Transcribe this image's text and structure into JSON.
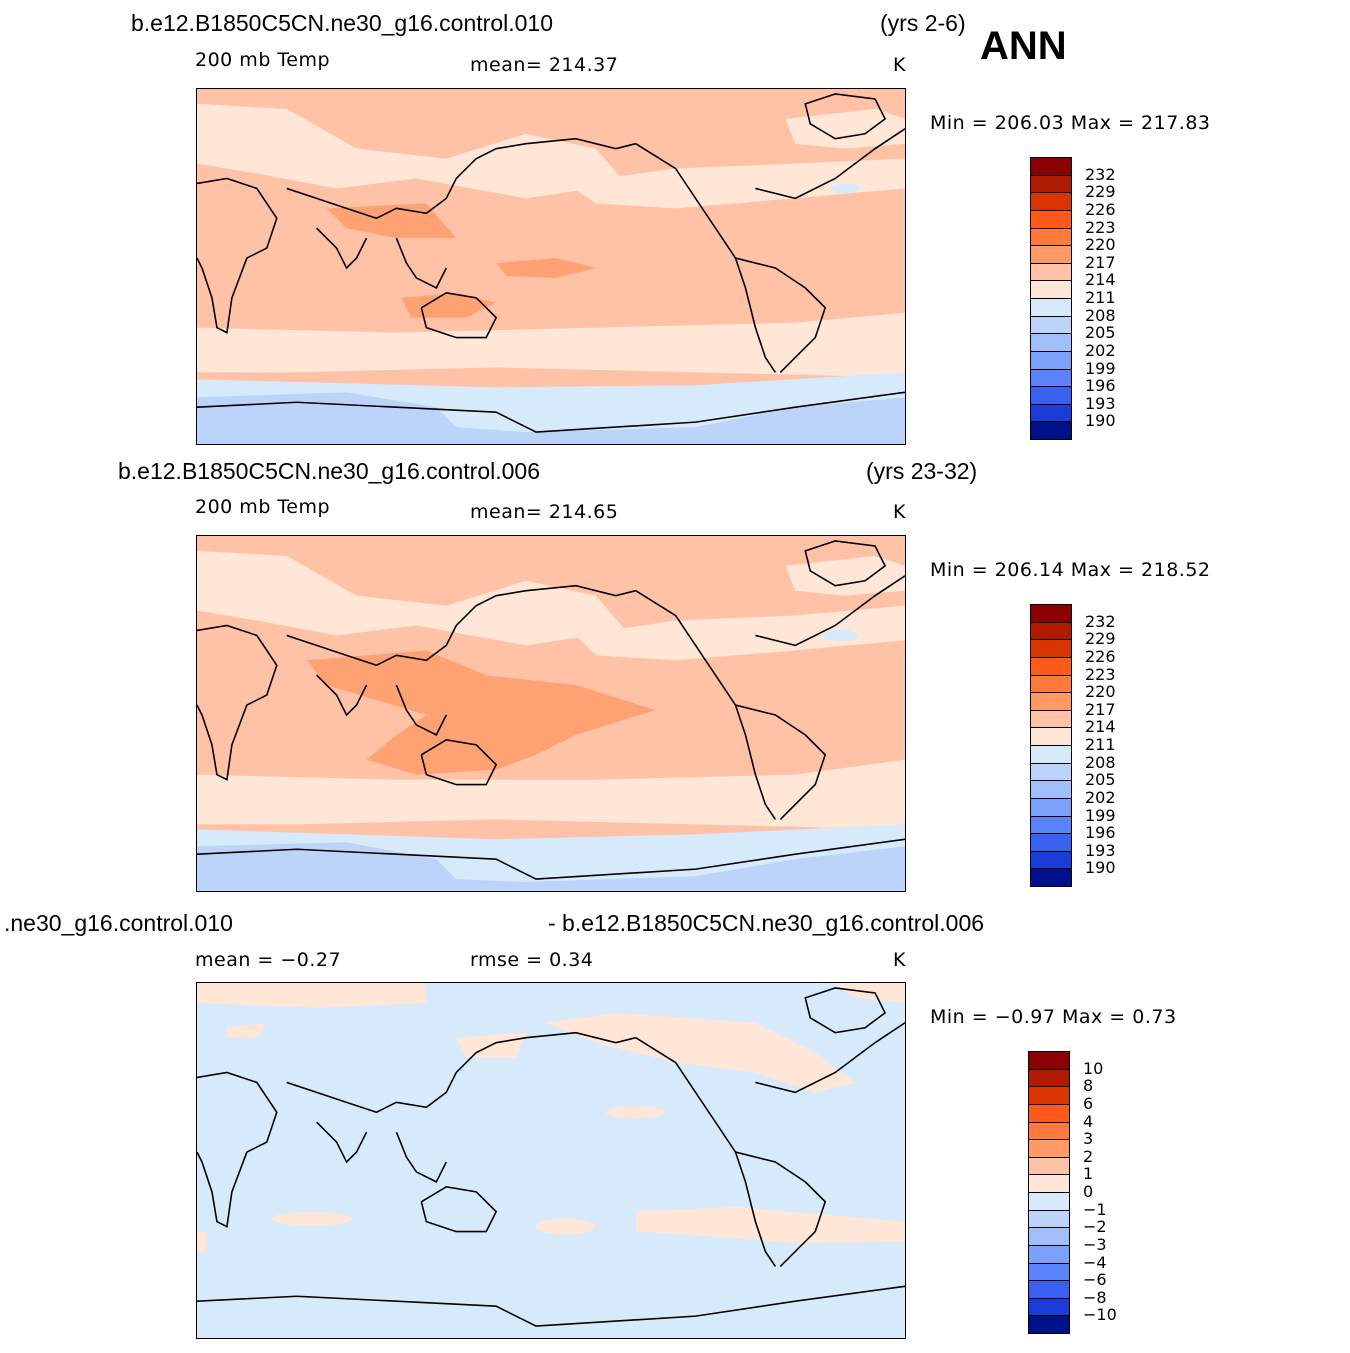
{
  "season": "ANN",
  "panels": [
    {
      "case_title": "b.e12.B1850C5CN.ne30_g16.control.010",
      "years": "(yrs 2-6)",
      "field": "200 mb Temp",
      "stat": "mean= 214.37",
      "units": "K",
      "minmax": "Min = 206.03 Max = 217.83"
    },
    {
      "case_title": "b.e12.B1850C5CN.ne30_g16.control.006",
      "years": "(yrs 23-32)",
      "field": "200 mb Temp",
      "stat": "mean= 214.65",
      "units": "K",
      "minmax": "Min = 206.14 Max = 218.52"
    },
    {
      "case_title_left": ".ne30_g16.control.010",
      "case_title_right": "- b.e12.B1850C5CN.ne30_g16.control.006",
      "stat_mean": "mean =   −0.27",
      "stat_rmse": "rmse =     0.34",
      "units": "K",
      "minmax": "Min =   −0.97 Max =     0.73"
    }
  ],
  "colorbar_abs": {
    "labels": [
      "232",
      "229",
      "226",
      "223",
      "220",
      "217",
      "214",
      "211",
      "208",
      "205",
      "202",
      "199",
      "196",
      "193",
      "190"
    ],
    "colors": [
      "#8b0000",
      "#b01a00",
      "#d93500",
      "#ff5a1a",
      "#ff7a3a",
      "#ff9a66",
      "#ffc2a6",
      "#ffe6d6",
      "#d7eafc",
      "#bcd4fa",
      "#a0befa",
      "#7aa0fa",
      "#5a82fa",
      "#3a60f0",
      "#1a3cd8",
      "#00108a"
    ]
  },
  "colorbar_diff": {
    "labels": [
      "10",
      "8",
      "6",
      "4",
      "3",
      "2",
      "1",
      "0",
      "−1",
      "−2",
      "−3",
      "−4",
      "−6",
      "−8",
      "−10"
    ],
    "colors": [
      "#8b0000",
      "#b01a00",
      "#d93500",
      "#ff5a1a",
      "#ff7a3a",
      "#ff9a66",
      "#ffc2a6",
      "#ffe6d6",
      "#d7eafc",
      "#bcd4fa",
      "#a0befa",
      "#7aa0fa",
      "#5a82fa",
      "#3a60f0",
      "#1a3cd8",
      "#00108a"
    ]
  }
}
